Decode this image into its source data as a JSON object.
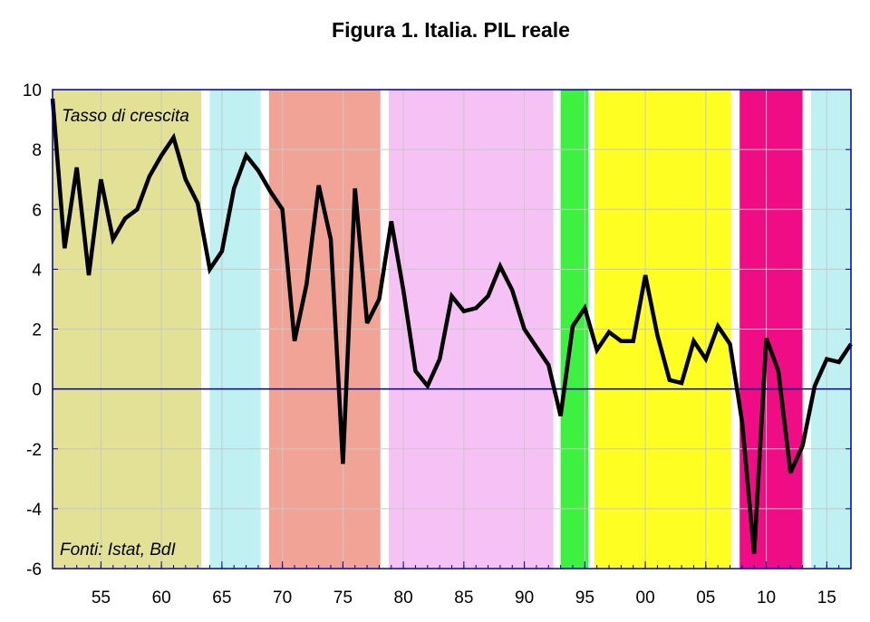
{
  "chart_data": {
    "type": "line",
    "title": "Figura 1. Italia. PIL reale",
    "annotations": {
      "top_left": "Tasso di crescita",
      "bottom_left": "Fonti: Istat, BdI"
    },
    "xlim": [
      1951,
      2017
    ],
    "ylim": [
      -6,
      10
    ],
    "grid": true,
    "legend": "none",
    "yticks": [
      10,
      8,
      6,
      4,
      2,
      0,
      -2,
      -4,
      -6
    ],
    "xtick_years": [
      1955,
      1960,
      1965,
      1970,
      1975,
      1980,
      1985,
      1990,
      1995,
      2000,
      2005,
      2010,
      2015
    ],
    "xtick_labels": [
      "55",
      "60",
      "65",
      "70",
      "75",
      "80",
      "85",
      "90",
      "95",
      "00",
      "05",
      "10",
      "15"
    ],
    "colors": {
      "line": "#000000",
      "zero_line": "#00008b",
      "frame": "#0000aa",
      "grid": "#c8c8c8"
    },
    "shaded_periods": [
      {
        "start": 1951,
        "end": 1963.3,
        "color": "#e3e196"
      },
      {
        "start": 1964.0,
        "end": 1968.2,
        "color": "#bff0f2"
      },
      {
        "start": 1968.9,
        "end": 1978.1,
        "color": "#f1a396"
      },
      {
        "start": 1978.8,
        "end": 1992.4,
        "color": "#f6c1f4"
      },
      {
        "start": 1993.0,
        "end": 1995.3,
        "color": "#3ef03f"
      },
      {
        "start": 1995.8,
        "end": 2007.1,
        "color": "#fefe22"
      },
      {
        "start": 2007.8,
        "end": 2013.0,
        "color": "#f00c84"
      },
      {
        "start": 2013.7,
        "end": 2017,
        "color": "#bff0f2"
      }
    ],
    "series": [
      {
        "x": [
          1951,
          1952,
          1953,
          1954,
          1955,
          1956,
          1957,
          1958,
          1959,
          1960,
          1961,
          1962,
          1963,
          1964,
          1965,
          1966,
          1967,
          1968,
          1969,
          1970,
          1971,
          1972,
          1973,
          1974,
          1975,
          1976,
          1977,
          1978,
          1979,
          1980,
          1981,
          1982,
          1983,
          1984,
          1985,
          1986,
          1987,
          1988,
          1989,
          1990,
          1991,
          1992,
          1993,
          1994,
          1995,
          1996,
          1997,
          1998,
          1999,
          2000,
          2001,
          2002,
          2003,
          2004,
          2005,
          2006,
          2007,
          2008,
          2009,
          2010,
          2011,
          2012,
          2013,
          2014,
          2015,
          2016,
          2017
        ],
        "values": [
          9.7,
          4.7,
          7.4,
          3.8,
          7.0,
          5.0,
          5.7,
          6.0,
          7.1,
          7.8,
          8.4,
          7.0,
          6.2,
          4.0,
          4.6,
          6.7,
          7.8,
          7.3,
          6.6,
          6.0,
          1.6,
          3.5,
          6.8,
          5.0,
          -2.5,
          6.7,
          2.2,
          3.0,
          5.6,
          3.3,
          0.6,
          0.1,
          1.0,
          3.1,
          2.6,
          2.7,
          3.1,
          4.1,
          3.3,
          2.0,
          1.4,
          0.8,
          -0.9,
          2.1,
          2.7,
          1.3,
          1.9,
          1.6,
          1.6,
          3.8,
          1.8,
          0.3,
          0.2,
          1.6,
          1.0,
          2.1,
          1.5,
          -1.1,
          -5.5,
          1.7,
          0.6,
          -2.8,
          -1.9,
          0.1,
          1.0,
          0.9,
          1.5
        ]
      }
    ]
  }
}
